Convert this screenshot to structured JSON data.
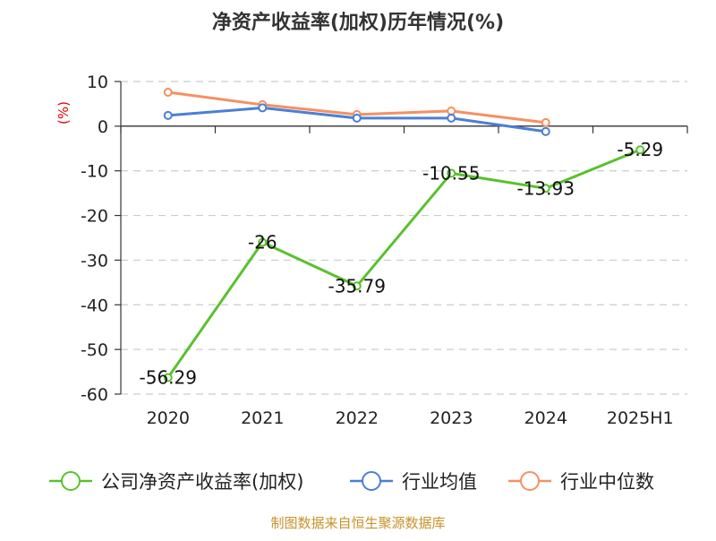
{
  "chart_data": {
    "type": "line",
    "title": "净资产收益率(加权)历年情况(%)",
    "ylabel": "(%)",
    "xlabel": "",
    "categories": [
      "2020",
      "2021",
      "2022",
      "2023",
      "2024",
      "2025H1"
    ],
    "ylim": [
      -60,
      10
    ],
    "yticks": [
      10,
      0,
      -10,
      -20,
      -30,
      -40,
      -50,
      -60
    ],
    "grid": true,
    "legend_position": "bottom",
    "series": [
      {
        "name": "公司净资产收益率(加权)",
        "color": "#5ac12e",
        "values": [
          -56.29,
          -26,
          -35.79,
          -10.55,
          -13.93,
          -5.29
        ],
        "labels": [
          "-56.29",
          "-26",
          "-35.79",
          "-10.55",
          "-13.93",
          "-5.29"
        ]
      },
      {
        "name": "行业均值",
        "color": "#4a7fd6",
        "values": [
          2.4,
          4.1,
          1.8,
          1.8,
          -1.2,
          null
        ]
      },
      {
        "name": "行业中位数",
        "color": "#f59062",
        "values": [
          7.6,
          4.8,
          2.6,
          3.4,
          0.8,
          null
        ]
      }
    ]
  },
  "source": "制图数据来自恒生聚源数据库"
}
